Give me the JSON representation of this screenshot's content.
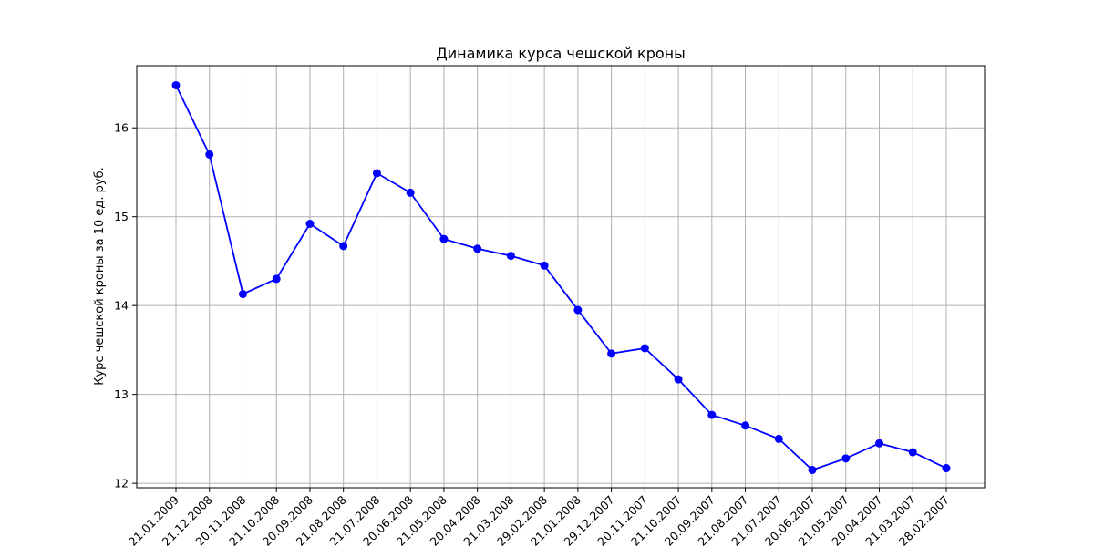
{
  "chart_data": {
    "type": "line",
    "title": "Динамика курса чешской кроны",
    "xlabel": "",
    "ylabel": "Курс чешской кроны за 10 ед. руб.",
    "ylim": [
      11.95,
      16.7
    ],
    "yticks": [
      12,
      13,
      14,
      15,
      16
    ],
    "grid": true,
    "categories": [
      "21.01.2009",
      "21.12.2008",
      "20.11.2008",
      "21.10.2008",
      "20.09.2008",
      "21.08.2008",
      "21.07.2008",
      "20.06.2008",
      "21.05.2008",
      "20.04.2008",
      "21.03.2008",
      "29.02.2008",
      "21.01.2008",
      "29.12.2007",
      "20.11.2007",
      "21.10.2007",
      "20.09.2007",
      "21.08.2007",
      "21.07.2007",
      "20.06.2007",
      "21.05.2007",
      "20.04.2007",
      "21.03.2007",
      "28.02.2007"
    ],
    "series": [
      {
        "color": "#0000ff",
        "values": [
          16.48,
          15.7,
          14.13,
          14.3,
          14.92,
          14.67,
          15.49,
          15.27,
          14.75,
          14.64,
          14.56,
          14.45,
          13.95,
          13.46,
          13.52,
          13.17,
          12.77,
          12.65,
          12.5,
          12.15,
          12.28,
          12.45,
          12.35,
          12.17
        ]
      }
    ]
  }
}
